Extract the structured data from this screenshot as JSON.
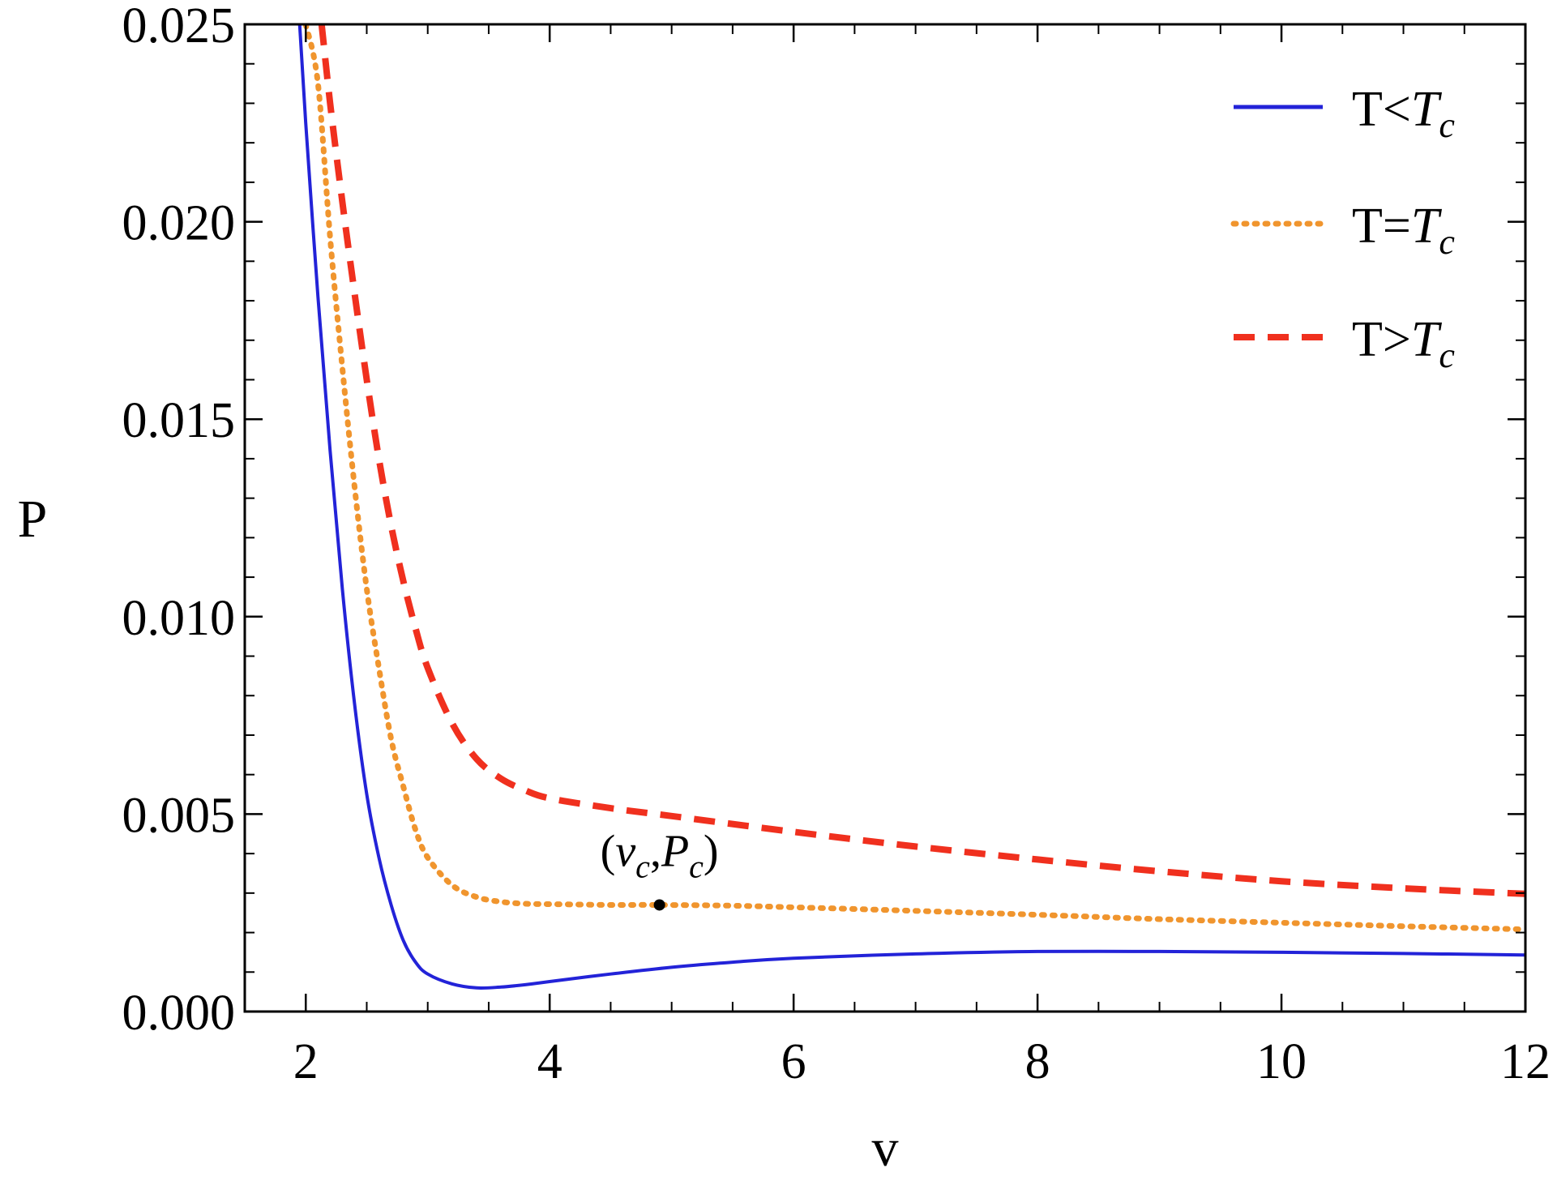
{
  "chart_data": {
    "type": "line",
    "xlabel": "v",
    "ylabel": "P",
    "xlim": [
      1.5,
      12
    ],
    "ylim": [
      0,
      0.025
    ],
    "x_ticks": [
      "2",
      "4",
      "6",
      "8",
      "10",
      "12"
    ],
    "x_tick_values": [
      2,
      4,
      6,
      8,
      10,
      12
    ],
    "y_ticks": [
      "0.000",
      "0.005",
      "0.010",
      "0.015",
      "0.020",
      "0.025"
    ],
    "y_tick_values": [
      0,
      0.005,
      0.01,
      0.015,
      0.02,
      0.025
    ],
    "grid": false,
    "legend_position": "top-right",
    "series": [
      {
        "name": "T<Tc",
        "legend_prefix": "T<",
        "legend_var": "T",
        "legend_sub": "c",
        "color": "#2323d8",
        "style": "solid",
        "x": [
          1.95,
          2.0,
          2.1,
          2.2,
          2.3,
          2.4,
          2.5,
          2.6,
          2.7,
          2.8,
          2.9,
          3.0,
          3.2,
          3.4,
          3.6,
          3.8,
          4.0,
          4.5,
          5.0,
          5.5,
          6.0,
          7.0,
          8.0,
          9.0,
          10.0,
          11.0,
          12.0
        ],
        "y": [
          0.025,
          0.0225,
          0.0181,
          0.0142,
          0.0107,
          0.0078,
          0.0055,
          0.0039,
          0.0027,
          0.0018,
          0.00125,
          0.00095,
          0.0007,
          0.0006,
          0.00062,
          0.00068,
          0.00076,
          0.00095,
          0.00112,
          0.00125,
          0.00135,
          0.00146,
          0.00152,
          0.00152,
          0.0015,
          0.00147,
          0.00143
        ]
      },
      {
        "name": "T=Tc",
        "legend_prefix": "T=",
        "legend_var": "T",
        "legend_sub": "c",
        "color": "#f0952e",
        "style": "dotted",
        "x": [
          2.0,
          2.1,
          2.2,
          2.3,
          2.4,
          2.5,
          2.6,
          2.7,
          2.8,
          2.9,
          3.0,
          3.2,
          3.4,
          3.6,
          3.8,
          4.0,
          4.5,
          4.9,
          5.5,
          6.0,
          7.0,
          8.0,
          9.0,
          10.0,
          11.0,
          12.0
        ],
        "y": [
          0.025,
          0.0235,
          0.0196,
          0.0163,
          0.0133,
          0.0107,
          0.0087,
          0.0069,
          0.0057,
          0.0046,
          0.0039,
          0.0032,
          0.0029,
          0.00278,
          0.00273,
          0.00272,
          0.0027,
          0.0027,
          0.00268,
          0.00264,
          0.00255,
          0.00245,
          0.00234,
          0.00225,
          0.00216,
          0.00208
        ]
      },
      {
        "name": "T>Tc",
        "legend_prefix": "T>",
        "legend_var": "T",
        "legend_sub": "c",
        "color": "#f0301e",
        "style": "dashed",
        "x": [
          2.13,
          2.2,
          2.3,
          2.4,
          2.5,
          2.6,
          2.7,
          2.8,
          2.9,
          3.0,
          3.2,
          3.4,
          3.6,
          3.8,
          4.0,
          4.5,
          5.0,
          6.0,
          7.0,
          8.0,
          9.0,
          10.0,
          11.0,
          12.0
        ],
        "y": [
          0.025,
          0.023,
          0.0205,
          0.0182,
          0.016,
          0.014,
          0.0123,
          0.0109,
          0.0097,
          0.0087,
          0.0073,
          0.0064,
          0.0059,
          0.0056,
          0.0054,
          0.00515,
          0.00495,
          0.00455,
          0.00418,
          0.00385,
          0.00355,
          0.0033,
          0.00312,
          0.00298
        ]
      }
    ],
    "annotations": [
      {
        "point_x": 4.9,
        "point_y": 0.0027,
        "open": "(",
        "var1": "v",
        "sub1": "c",
        "sep": ",",
        "var2": "P",
        "sub2": "c",
        "close": ")"
      }
    ]
  }
}
